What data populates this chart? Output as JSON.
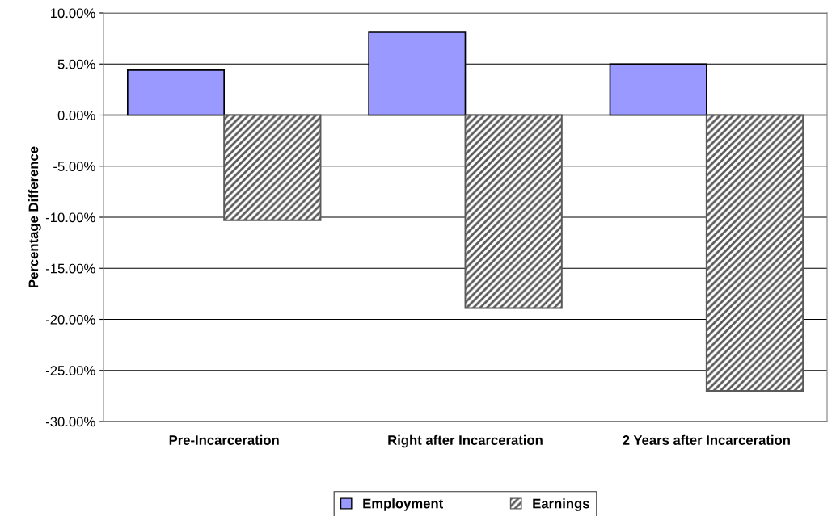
{
  "chart_data": {
    "type": "bar",
    "ylabel": "Percentage Difference",
    "categories": [
      "Pre-Incarceration",
      "Right after Incarceration",
      "2 Years after Incarceration"
    ],
    "series": [
      {
        "name": "Employment",
        "color": "#9999ff",
        "values": [
          4.4,
          8.1,
          5.0
        ]
      },
      {
        "name": "Earnings",
        "color": "#5a5a5a",
        "values": [
          -10.3,
          -18.9,
          -27.0
        ]
      }
    ],
    "ylim": [
      -30,
      10
    ],
    "yticks": [
      {
        "value": -30,
        "label": "-30.00%"
      },
      {
        "value": -25,
        "label": "-25.00%"
      },
      {
        "value": -20,
        "label": "-20.00%"
      },
      {
        "value": -15,
        "label": "-15.00%"
      },
      {
        "value": -10,
        "label": "-10.00%"
      },
      {
        "value": -5,
        "label": "-5.00%"
      },
      {
        "value": 0,
        "label": "0.00%"
      },
      {
        "value": 5,
        "label": "5.00%"
      },
      {
        "value": 10,
        "label": "10.00%"
      }
    ],
    "grid": "y",
    "legend": "bottom"
  }
}
